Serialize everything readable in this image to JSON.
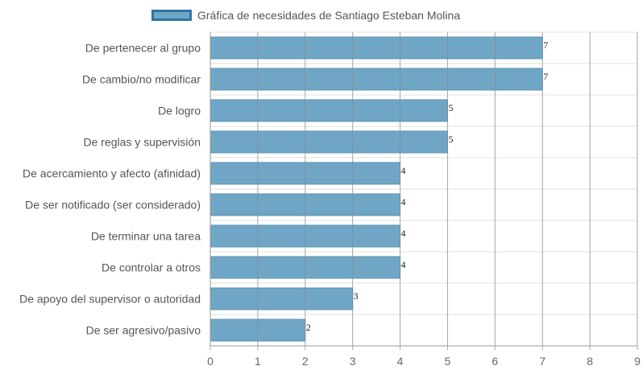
{
  "chart_data": {
    "type": "bar",
    "orientation": "horizontal",
    "categories": [
      "De pertenecer al grupo",
      "De cambio/no modificar",
      "De logro",
      "De reglas y supervisión",
      "De acercamiento y afecto (afinidad)",
      "De ser notificado (ser considerado)",
      "De terminar una tarea",
      "De controlar a otros",
      "De apoyo del supervisor o autoridad",
      "De ser agresivo/pasivo"
    ],
    "series": [
      {
        "name": "Gráfica de necesidades de Santiago Esteban Molina",
        "values": [
          7,
          7,
          5,
          5,
          4,
          4,
          4,
          4,
          3,
          2
        ]
      }
    ],
    "xlim": [
      0,
      9
    ],
    "xticks": [
      0,
      1,
      2,
      3,
      4,
      5,
      6,
      7,
      8,
      9
    ],
    "grid": true,
    "legend_position": "top",
    "data_labels": true,
    "colors": {
      "bar_fill": "#6fa6c6",
      "bar_stroke": "#5b93b5",
      "legend_border": "#2f74a4",
      "vertical_grid": "#888888",
      "horizontal_grid": "#e2e2e2"
    }
  }
}
